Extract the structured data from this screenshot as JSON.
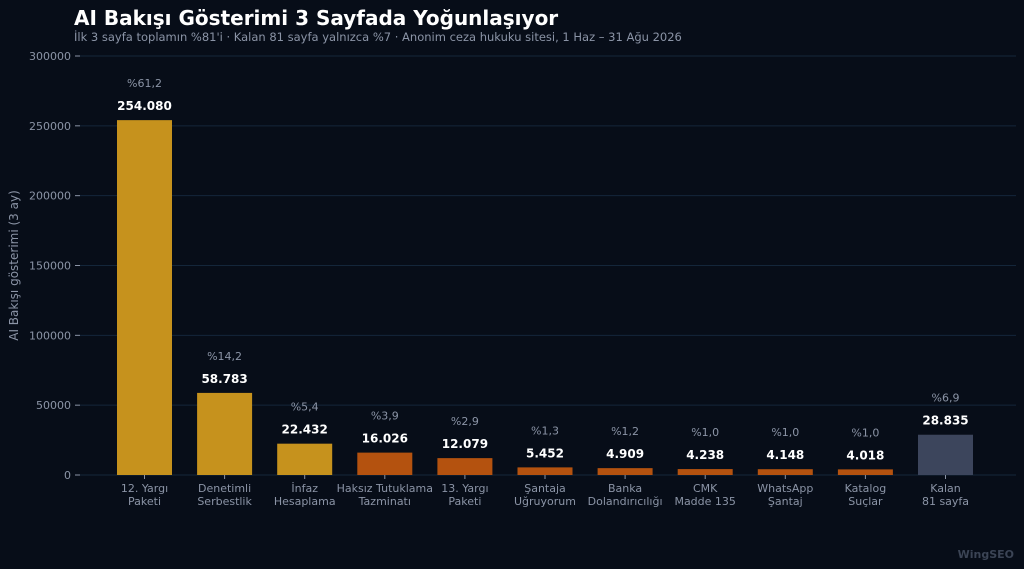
{
  "header": {
    "title": "AI Bakışı Gösterimi 3 Sayfada Yoğunlaşıyor",
    "subtitle": "İlk 3 sayfa toplamın %81'i · Kalan 81 sayfa yalnızca %7 · Anonim ceza hukuku sitesi, 1 Haz – 31 Ağu 2026"
  },
  "watermark": "WingSEO",
  "chart_data": {
    "type": "bar",
    "title": "AI Bakışı Gösterimi 3 Sayfada Yoğunlaşıyor",
    "subtitle": "İlk 3 sayfa toplamın %81'i · Kalan 81 sayfa yalnızca %7 · Anonim ceza hukuku sitesi, 1 Haz – 31 Ağu 2026",
    "xlabel": "",
    "ylabel": "AI Bakışı gösterimi (3 ay)",
    "ylim": [
      0,
      300000
    ],
    "yticks": [
      0,
      50000,
      100000,
      150000,
      200000,
      250000,
      300000
    ],
    "ytick_labels": [
      "0",
      "50000",
      "100000",
      "150000",
      "200000",
      "250000",
      "300000"
    ],
    "grid": true,
    "categories": [
      [
        "12. Yargı",
        "Paketi"
      ],
      [
        "Denetimli",
        "Serbestlik"
      ],
      [
        "İnfaz",
        "Hesaplama"
      ],
      [
        "Haksız Tutuklama",
        "Tazminatı"
      ],
      [
        "13. Yargı",
        "Paketi"
      ],
      [
        "Şantaja",
        "Uğruyorum"
      ],
      [
        "Banka",
        "Dolandırıcılığı"
      ],
      [
        "CMK",
        "Madde 135"
      ],
      [
        "WhatsApp",
        "Şantaj"
      ],
      [
        "Katalog",
        "Suçlar"
      ],
      [
        "Kalan",
        "81 sayfa"
      ]
    ],
    "values": [
      254080,
      58783,
      22432,
      16026,
      12079,
      5452,
      4909,
      4238,
      4148,
      4018,
      28835
    ],
    "value_labels": [
      "254.080",
      "58.783",
      "22.432",
      "16.026",
      "12.079",
      "5.452",
      "4.909",
      "4.238",
      "4.148",
      "4.018",
      "28.835"
    ],
    "pct_labels": [
      "%61,2",
      "%14,2",
      "%5,4",
      "%3,9",
      "%2,9",
      "%1,3",
      "%1,2",
      "%1,0",
      "%1,0",
      "%1,0",
      "%6,9"
    ],
    "colors": [
      "#c6921d",
      "#c6921d",
      "#c6921d",
      "#b4520f",
      "#b4520f",
      "#b4520f",
      "#b4520f",
      "#b4520f",
      "#b4520f",
      "#b4520f",
      "#3c455c"
    ]
  },
  "style": {
    "grid_color": "#14263a",
    "axis_text_color": "#8b94a6",
    "value_label_color": "#ffffff",
    "pct_label_color": "#8b94a6"
  }
}
